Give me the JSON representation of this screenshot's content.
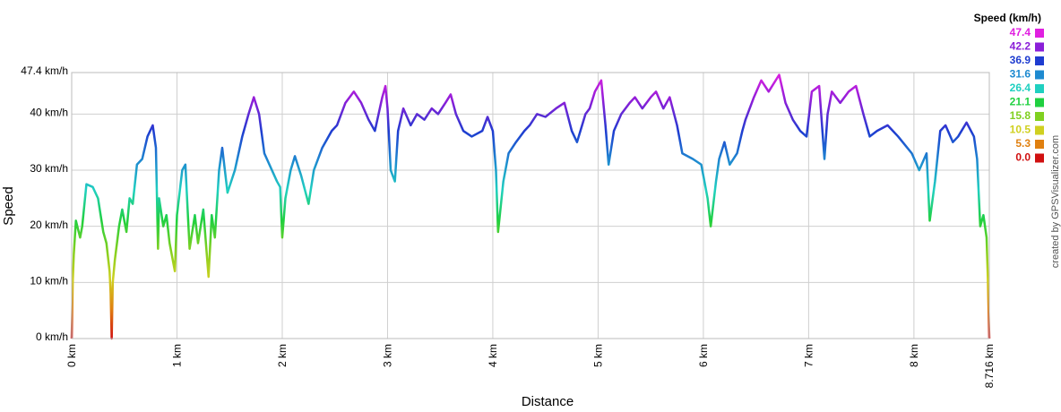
{
  "chart_data": {
    "type": "line",
    "x_label": "Distance",
    "y_label": "Speed",
    "credit": "created by GPSVisualizer.com",
    "xlim": [
      0,
      8.716
    ],
    "ylim": [
      0,
      47.4
    ],
    "xticks": [
      {
        "value": 0,
        "label": "0 km"
      },
      {
        "value": 1,
        "label": "1 km"
      },
      {
        "value": 2,
        "label": "2 km"
      },
      {
        "value": 3,
        "label": "3 km"
      },
      {
        "value": 4,
        "label": "4 km"
      },
      {
        "value": 5,
        "label": "5 km"
      },
      {
        "value": 6,
        "label": "6 km"
      },
      {
        "value": 7,
        "label": "7 km"
      },
      {
        "value": 8,
        "label": "8 km"
      },
      {
        "value": 8.716,
        "label": "8.716 km"
      }
    ],
    "yticks": [
      {
        "value": 0,
        "label": "0 km/h"
      },
      {
        "value": 10,
        "label": "10 km/h"
      },
      {
        "value": 20,
        "label": "20 km/h"
      },
      {
        "value": 30,
        "label": "30 km/h"
      },
      {
        "value": 40,
        "label": "40 km/h"
      },
      {
        "value": 47.4,
        "label": "47.4 km/h"
      }
    ],
    "grid": true,
    "color_scale": {
      "title": "Speed (km/h)",
      "stops": [
        {
          "value": 47.4,
          "color": "#e020e0"
        },
        {
          "value": 42.2,
          "color": "#8a1ed8"
        },
        {
          "value": 36.9,
          "color": "#1e3cd0"
        },
        {
          "value": 31.6,
          "color": "#1e8ad0"
        },
        {
          "value": 26.4,
          "color": "#20d0c0"
        },
        {
          "value": 21.1,
          "color": "#20d040"
        },
        {
          "value": 15.8,
          "color": "#80d020"
        },
        {
          "value": 10.5,
          "color": "#d0d020"
        },
        {
          "value": 5.3,
          "color": "#e08010"
        },
        {
          "value": 0,
          "label": "0.0",
          "color": "#d01010"
        }
      ]
    },
    "x": [
      0,
      0.01,
      0.02,
      0.04,
      0.08,
      0.1,
      0.14,
      0.2,
      0.25,
      0.3,
      0.33,
      0.36,
      0.37,
      0.38,
      0.39,
      0.41,
      0.45,
      0.48,
      0.52,
      0.55,
      0.58,
      0.62,
      0.67,
      0.72,
      0.77,
      0.8,
      0.82,
      0.83,
      0.87,
      0.9,
      0.93,
      0.98,
      1.0,
      1.05,
      1.08,
      1.12,
      1.17,
      1.2,
      1.25,
      1.3,
      1.33,
      1.36,
      1.4,
      1.43,
      1.48,
      1.55,
      1.62,
      1.68,
      1.73,
      1.78,
      1.83,
      1.95,
      1.98,
      2.0,
      2.03,
      2.08,
      2.12,
      2.18,
      2.25,
      2.3,
      2.38,
      2.47,
      2.52,
      2.6,
      2.68,
      2.75,
      2.82,
      2.88,
      2.95,
      2.98,
      3.0,
      3.03,
      3.07,
      3.1,
      3.15,
      3.22,
      3.28,
      3.35,
      3.42,
      3.48,
      3.55,
      3.6,
      3.65,
      3.72,
      3.8,
      3.9,
      3.95,
      4.0,
      4.03,
      4.05,
      4.1,
      4.15,
      4.22,
      4.3,
      4.35,
      4.42,
      4.5,
      4.6,
      4.68,
      4.75,
      4.8,
      4.88,
      4.92,
      4.97,
      5.03,
      5.07,
      5.1,
      5.15,
      5.22,
      5.3,
      5.35,
      5.42,
      5.5,
      5.55,
      5.62,
      5.68,
      5.75,
      5.8,
      5.9,
      5.98,
      6.04,
      6.07,
      6.12,
      6.15,
      6.2,
      6.25,
      6.32,
      6.37,
      6.4,
      6.48,
      6.55,
      6.62,
      6.72,
      6.78,
      6.85,
      6.92,
      6.98,
      7.03,
      7.1,
      7.15,
      7.18,
      7.22,
      7.3,
      7.38,
      7.45,
      7.52,
      7.58,
      7.65,
      7.75,
      7.85,
      7.98,
      8.05,
      8.12,
      8.15,
      8.2,
      8.25,
      8.3,
      8.37,
      8.42,
      8.5,
      8.57,
      8.6,
      8.63,
      8.66,
      8.69,
      8.7,
      8.716
    ],
    "values": [
      0,
      10,
      15,
      21,
      18,
      20,
      27.5,
      27,
      25,
      19,
      17,
      12,
      8,
      0,
      10,
      14,
      20,
      23,
      19,
      25,
      24,
      31,
      32,
      36,
      38,
      34,
      16,
      25,
      20,
      22,
      17,
      12,
      22,
      30,
      31,
      16,
      22,
      17,
      23,
      11,
      22,
      18,
      30,
      34,
      26,
      30,
      36,
      40,
      43,
      40,
      33,
      28,
      27,
      18,
      25,
      30,
      32.5,
      29,
      24,
      30,
      34,
      37,
      38,
      42,
      44,
      42,
      39,
      37,
      43,
      45,
      41,
      30,
      28,
      37,
      41,
      38,
      40,
      39,
      41,
      40,
      42,
      43.5,
      40,
      37,
      36,
      37,
      39.5,
      37,
      30,
      19,
      28,
      33,
      35,
      37,
      38,
      40,
      39.5,
      41,
      42,
      37,
      35,
      40,
      41,
      44,
      46,
      38,
      31,
      37,
      40,
      42,
      43,
      41,
      43,
      44,
      41,
      43,
      38,
      33,
      32,
      31,
      25,
      20,
      28,
      32,
      35,
      31,
      33,
      37,
      39,
      43,
      46,
      44,
      47,
      42,
      39,
      37,
      36,
      44,
      45,
      32,
      40,
      44,
      42,
      44,
      45,
      40,
      36,
      37,
      38,
      36,
      33,
      30,
      33,
      21,
      28,
      37,
      38,
      35,
      36,
      38.5,
      36,
      32,
      20,
      22,
      18,
      12,
      0
    ]
  }
}
